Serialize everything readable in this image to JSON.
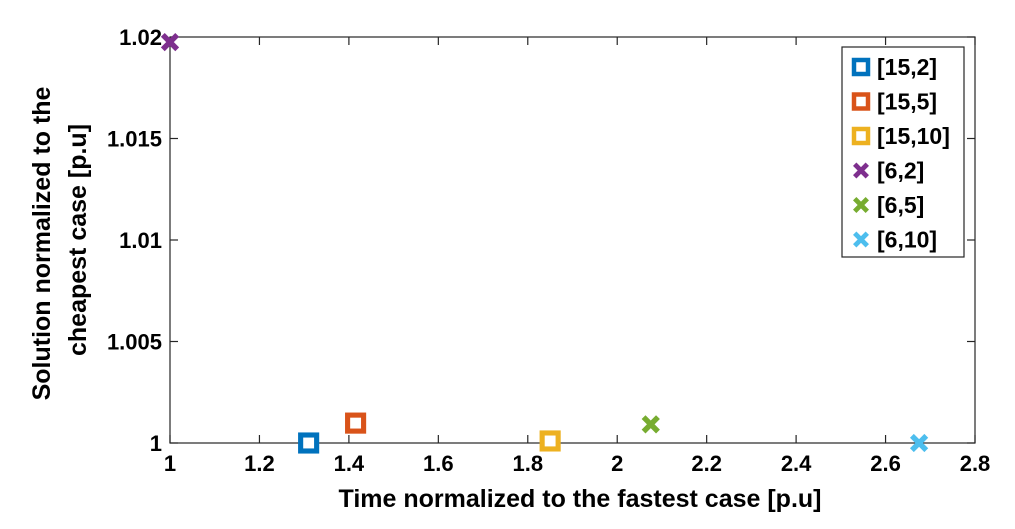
{
  "chart_data": {
    "type": "scatter",
    "xlabel": "Time normalized to the fastest case [p.u]",
    "ylabel_lines": [
      "Solution normalized to the",
      "cheapest case [p.u]"
    ],
    "xlim": [
      1,
      2.8
    ],
    "ylim": [
      1,
      1.02
    ],
    "x_ticks": [
      1,
      1.2,
      1.4,
      1.6,
      1.8,
      2,
      2.2,
      2.4,
      2.6,
      2.8
    ],
    "x_tick_labels": [
      "1",
      "1.2",
      "1.4",
      "1.6",
      "1.8",
      "2",
      "2.2",
      "2.4",
      "2.6",
      "2.8"
    ],
    "y_ticks": [
      1,
      1.005,
      1.01,
      1.015,
      1.02
    ],
    "y_tick_labels": [
      "1",
      "1.005",
      "1.01",
      "1.015",
      "1.02"
    ],
    "grid": false,
    "legend_position": "top-right",
    "series": [
      {
        "name": "[15,2]",
        "marker": "square",
        "color": "#0072BD",
        "x": [
          1.31
        ],
        "y": [
          1.0
        ]
      },
      {
        "name": "[15,5]",
        "marker": "square",
        "color": "#D95319",
        "x": [
          1.415
        ],
        "y": [
          1.00098
        ]
      },
      {
        "name": "[15,10]",
        "marker": "square",
        "color": "#EDB120",
        "x": [
          1.85
        ],
        "y": [
          1.0001
        ]
      },
      {
        "name": "[6,2]",
        "marker": "x",
        "color": "#7E2F8E",
        "x": [
          1.0
        ],
        "y": [
          1.01975
        ]
      },
      {
        "name": "[6,5]",
        "marker": "x",
        "color": "#77AC30",
        "x": [
          2.075
        ],
        "y": [
          1.00092
        ]
      },
      {
        "name": "[6,10]",
        "marker": "x",
        "color": "#4DBEEE",
        "x": [
          2.675
        ],
        "y": [
          1.0
        ]
      }
    ]
  }
}
